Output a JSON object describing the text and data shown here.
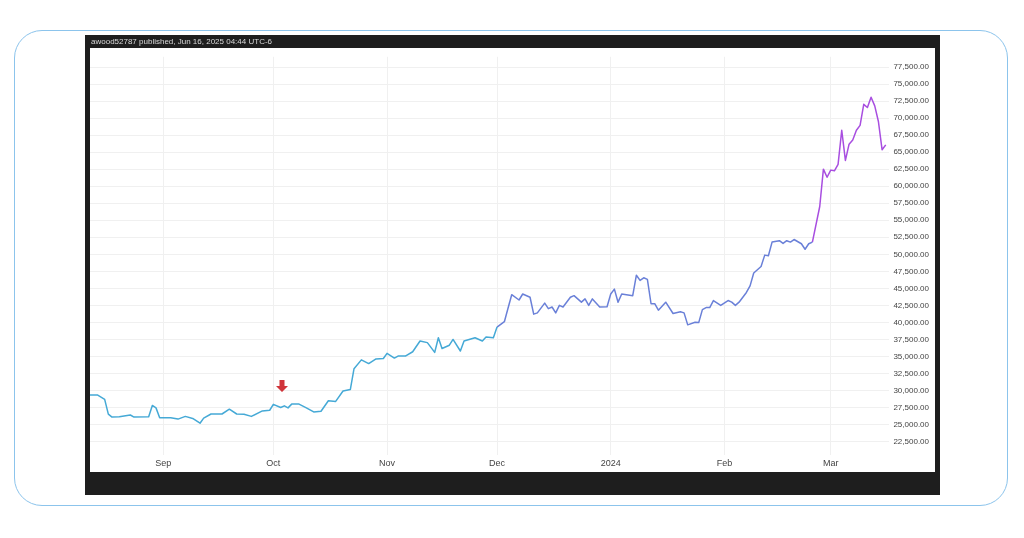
{
  "chart_data": {
    "type": "line",
    "title": "awood52787 published, Jun 16, 2025 04:44 UTC-6",
    "xlim": [
      "2023-08-12",
      "2024-03-17"
    ],
    "xticks": [
      {
        "value": "2023-09-01",
        "label": "Sep"
      },
      {
        "value": "2023-10-01",
        "label": "Oct"
      },
      {
        "value": "2023-11-01",
        "label": "Nov"
      },
      {
        "value": "2023-12-01",
        "label": "Dec"
      },
      {
        "value": "2024-01-01",
        "label": "2024"
      },
      {
        "value": "2024-02-01",
        "label": "Feb"
      },
      {
        "value": "2024-03-01",
        "label": "Mar"
      }
    ],
    "ylim": [
      20500,
      79000
    ],
    "yticks": [
      {
        "value": 22500,
        "label": "22,500.00"
      },
      {
        "value": 25000,
        "label": "25,000.00"
      },
      {
        "value": 27500,
        "label": "27,500.00"
      },
      {
        "value": 30000,
        "label": "30,000.00"
      },
      {
        "value": 32500,
        "label": "32,500.00"
      },
      {
        "value": 35000,
        "label": "35,000.00"
      },
      {
        "value": 37500,
        "label": "37,500.00"
      },
      {
        "value": 40000,
        "label": "40,000.00"
      },
      {
        "value": 42500,
        "label": "42,500.00"
      },
      {
        "value": 45000,
        "label": "45,000.00"
      },
      {
        "value": 47500,
        "label": "47,500.00"
      },
      {
        "value": 50000,
        "label": "50,000.00"
      },
      {
        "value": 52500,
        "label": "52,500.00"
      },
      {
        "value": 55000,
        "label": "55,000.00"
      },
      {
        "value": 57500,
        "label": "57,500.00"
      },
      {
        "value": 60000,
        "label": "60,000.00"
      },
      {
        "value": 62500,
        "label": "62,500.00"
      },
      {
        "value": 65000,
        "label": "65,000.00"
      },
      {
        "value": 67500,
        "label": "67,500.00"
      },
      {
        "value": 70000,
        "label": "70,000.00"
      },
      {
        "value": 72500,
        "label": "72,500.00"
      },
      {
        "value": 75000,
        "label": "75,000.00"
      },
      {
        "value": 77500,
        "label": "77,500.00"
      }
    ],
    "grid": true,
    "legend": false,
    "marker": "none",
    "line_style": "solid",
    "series": [
      {
        "color": "#45a9d6",
        "x": [
          "2023-08-12",
          "2023-08-14",
          "2023-08-16",
          "2023-08-17",
          "2023-08-18",
          "2023-08-20",
          "2023-08-23",
          "2023-08-24",
          "2023-08-28",
          "2023-08-29",
          "2023-08-30",
          "2023-08-31",
          "2023-09-03",
          "2023-09-05",
          "2023-09-07",
          "2023-09-09",
          "2023-09-11",
          "2023-09-12",
          "2023-09-14",
          "2023-09-17",
          "2023-09-19",
          "2023-09-21",
          "2023-09-23",
          "2023-09-25",
          "2023-09-28",
          "2023-09-30",
          "2023-10-01",
          "2023-10-03",
          "2023-10-04",
          "2023-10-05",
          "2023-10-06",
          "2023-10-08",
          "2023-10-10",
          "2023-10-12",
          "2023-10-14",
          "2023-10-16",
          "2023-10-18",
          "2023-10-20",
          "2023-10-22",
          "2023-10-23",
          "2023-10-25",
          "2023-10-27",
          "2023-10-29",
          "2023-10-31",
          "2023-11-01",
          "2023-11-03",
          "2023-11-04",
          "2023-11-06",
          "2023-11-08",
          "2023-11-10",
          "2023-11-12",
          "2023-11-14",
          "2023-11-15",
          "2023-11-16",
          "2023-11-18",
          "2023-11-19",
          "2023-11-21",
          "2023-11-22",
          "2023-11-25",
          "2023-11-27",
          "2023-11-28",
          "2023-11-30",
          "2023-12-01"
        ],
        "values": [
          29350,
          29350,
          28700,
          26540,
          26100,
          26150,
          26400,
          26100,
          26150,
          27800,
          27450,
          26000,
          26000,
          25800,
          26200,
          25900,
          25200,
          25950,
          26550,
          26550,
          27250,
          26550,
          26500,
          26200,
          27000,
          27100,
          27970,
          27500,
          27750,
          27450,
          28000,
          28000,
          27450,
          26850,
          26950,
          28500,
          28400,
          29930,
          30150,
          33200,
          34500,
          33950,
          34640,
          34700,
          35450,
          34760,
          35050,
          35050,
          35690,
          37270,
          37030,
          35600,
          37740,
          36170,
          36650,
          37500,
          35800,
          37270,
          37740,
          37270,
          37860,
          37740,
          39310
        ]
      },
      {
        "color": "#6a80d8",
        "x": [
          "2023-12-01",
          "2023-12-03",
          "2023-12-05",
          "2023-12-07",
          "2023-12-08",
          "2023-12-10",
          "2023-12-11",
          "2023-12-12",
          "2023-12-14",
          "2023-12-15",
          "2023-12-16",
          "2023-12-17",
          "2023-12-18",
          "2023-12-19",
          "2023-12-21",
          "2023-12-22",
          "2023-12-24",
          "2023-12-25",
          "2023-12-26",
          "2023-12-27",
          "2023-12-29",
          "2023-12-31",
          "2024-01-01",
          "2024-01-02",
          "2024-01-03",
          "2024-01-04",
          "2024-01-07",
          "2024-01-08",
          "2024-01-09",
          "2024-01-10",
          "2024-01-11",
          "2024-01-12",
          "2024-01-13",
          "2024-01-14",
          "2024-01-16",
          "2024-01-18",
          "2024-01-20",
          "2024-01-21",
          "2024-01-22",
          "2024-01-24",
          "2024-01-25",
          "2024-01-26",
          "2024-01-27",
          "2024-01-28",
          "2024-01-29",
          "2024-01-31",
          "2024-02-02",
          "2024-02-03",
          "2024-02-04",
          "2024-02-05",
          "2024-02-07",
          "2024-02-08",
          "2024-02-09",
          "2024-02-11",
          "2024-02-12",
          "2024-02-13",
          "2024-02-14",
          "2024-02-16",
          "2024-02-17",
          "2024-02-18",
          "2024-02-19",
          "2024-02-20",
          "2024-02-22",
          "2024-02-23",
          "2024-02-24",
          "2024-02-25"
        ],
        "values": [
          39310,
          40100,
          44070,
          43290,
          44170,
          43690,
          41210,
          41400,
          42830,
          42020,
          42260,
          41400,
          42500,
          42260,
          43690,
          43930,
          42970,
          43450,
          42500,
          43450,
          42260,
          42300,
          44170,
          44880,
          42970,
          44170,
          43930,
          46930,
          46170,
          46550,
          46310,
          42740,
          42740,
          41790,
          42970,
          41310,
          41550,
          41400,
          39640,
          40020,
          39970,
          41880,
          42170,
          42170,
          43210,
          42500,
          43210,
          42970,
          42500,
          42970,
          44400,
          45360,
          47260,
          48210,
          49880,
          49790,
          51790,
          52000,
          51600,
          52000,
          51790,
          52170,
          51550,
          50740,
          51550,
          51790
        ]
      },
      {
        "color": "#a84ee0",
        "x": [
          "2024-02-25",
          "2024-02-27",
          "2024-02-28",
          "2024-02-29",
          "2024-03-01",
          "2024-03-02",
          "2024-03-03",
          "2024-03-04",
          "2024-03-05",
          "2024-03-06",
          "2024-03-07",
          "2024-03-08",
          "2024-03-09",
          "2024-03-10",
          "2024-03-11",
          "2024-03-12",
          "2024-03-13",
          "2024-03-14",
          "2024-03-15",
          "2024-03-16"
        ],
        "values": [
          51790,
          57020,
          62500,
          61310,
          62360,
          62260,
          63210,
          68210,
          63790,
          66170,
          66790,
          68210,
          68930,
          72020,
          71550,
          73070,
          71790,
          69500,
          65360,
          66070
        ]
      }
    ]
  }
}
